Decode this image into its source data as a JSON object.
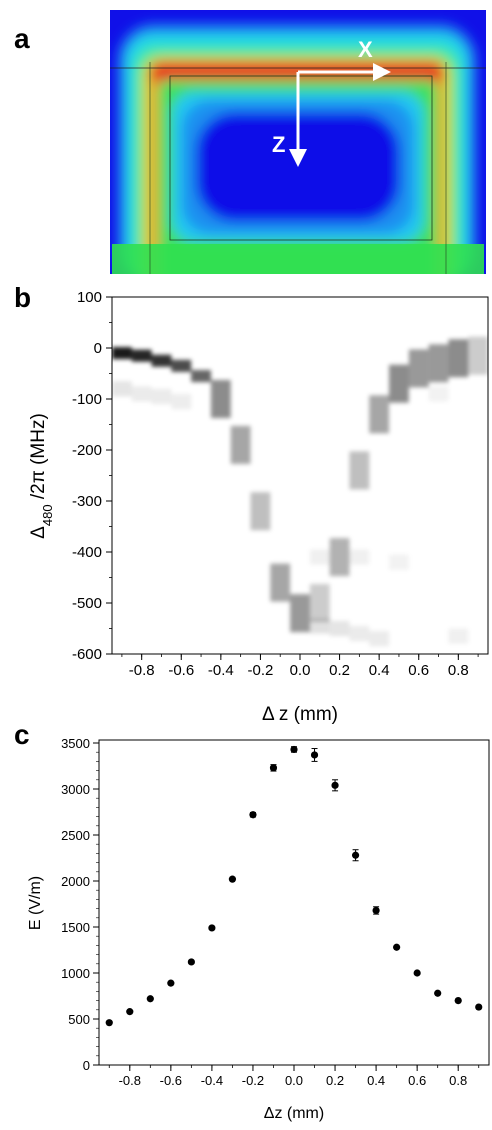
{
  "panels": {
    "a": {
      "label": "a",
      "x_arrow_label": "X",
      "z_arrow_label": "Z"
    },
    "b": {
      "label": "b"
    },
    "c": {
      "label": "c"
    }
  },
  "colors": {
    "field_low": "#1414e6",
    "field_mid": "#22e03c",
    "field_high": "#e83020",
    "spectrum": "#000000",
    "points": "#000000"
  },
  "chart_data": [
    {
      "panel": "b",
      "type": "heatmap",
      "xlabel": "Δ z (mm)",
      "ylabel_parts": [
        "Δ",
        "480",
        " /2π (MHz)"
      ],
      "xlim": [
        -0.95,
        0.95
      ],
      "ylim": [
        -600,
        100
      ],
      "x_ticks": [
        -0.8,
        -0.6,
        -0.4,
        -0.2,
        0.0,
        0.2,
        0.4,
        0.6,
        0.8
      ],
      "x_tick_labels": [
        "-0.8",
        "-0.6",
        "-0.4",
        "-0.2",
        "0.0",
        "0.2",
        "0.4",
        "0.6",
        "0.8"
      ],
      "y_ticks": [
        100,
        0,
        -100,
        -200,
        -300,
        -400,
        -500,
        -600
      ],
      "y_tick_labels": [
        "100",
        "0",
        "-100",
        "-200",
        "-300",
        "-400",
        "-500",
        "-600"
      ],
      "dz_columns": [
        -0.9,
        -0.8,
        -0.7,
        -0.6,
        -0.5,
        -0.4,
        -0.3,
        -0.2,
        -0.1,
        0.0,
        0.1,
        0.2,
        0.3,
        0.4,
        0.5,
        0.6,
        0.7,
        0.8,
        0.9
      ],
      "peaks": [
        {
          "x": -0.9,
          "y": -10,
          "strength": 0.9
        },
        {
          "x": -0.8,
          "y": -15,
          "strength": 0.85
        },
        {
          "x": -0.7,
          "y": -25,
          "strength": 0.8
        },
        {
          "x": -0.6,
          "y": -35,
          "strength": 0.7
        },
        {
          "x": -0.5,
          "y": -55,
          "strength": 0.6
        },
        {
          "x": -0.4,
          "y": -100,
          "strength": 0.45
        },
        {
          "x": -0.3,
          "y": -190,
          "strength": 0.35
        },
        {
          "x": -0.2,
          "y": -320,
          "strength": 0.25
        },
        {
          "x": -0.1,
          "y": -460,
          "strength": 0.35
        },
        {
          "x": 0.0,
          "y": -520,
          "strength": 0.4
        },
        {
          "x": 0.1,
          "y": -500,
          "strength": 0.2
        },
        {
          "x": 0.2,
          "y": -410,
          "strength": 0.3
        },
        {
          "x": 0.3,
          "y": -240,
          "strength": 0.25
        },
        {
          "x": 0.4,
          "y": -130,
          "strength": 0.35
        },
        {
          "x": 0.5,
          "y": -70,
          "strength": 0.45
        },
        {
          "x": 0.6,
          "y": -40,
          "strength": 0.4
        },
        {
          "x": 0.7,
          "y": -30,
          "strength": 0.4
        },
        {
          "x": 0.8,
          "y": -20,
          "strength": 0.45
        },
        {
          "x": 0.9,
          "y": -15,
          "strength": 0.2
        }
      ],
      "secondary_peaks": [
        {
          "x": -0.9,
          "y": -80,
          "strength": 0.1
        },
        {
          "x": -0.8,
          "y": -90,
          "strength": 0.08
        },
        {
          "x": -0.7,
          "y": -95,
          "strength": 0.08
        },
        {
          "x": -0.6,
          "y": -105,
          "strength": 0.07
        },
        {
          "x": 0.1,
          "y": -545,
          "strength": 0.12
        },
        {
          "x": 0.2,
          "y": -550,
          "strength": 0.1
        },
        {
          "x": 0.3,
          "y": -560,
          "strength": 0.08
        },
        {
          "x": 0.4,
          "y": -570,
          "strength": 0.08
        },
        {
          "x": 0.1,
          "y": -410,
          "strength": 0.06
        },
        {
          "x": 0.3,
          "y": -410,
          "strength": 0.06
        },
        {
          "x": 0.5,
          "y": -420,
          "strength": 0.05
        },
        {
          "x": 0.7,
          "y": -90,
          "strength": 0.05
        },
        {
          "x": 0.8,
          "y": -565,
          "strength": 0.06
        }
      ]
    },
    {
      "panel": "c",
      "type": "scatter",
      "xlabel": "Δz (mm)",
      "ylabel": "E (V/m)",
      "xlim": [
        -0.95,
        0.95
      ],
      "ylim": [
        0,
        3500
      ],
      "x_ticks": [
        -0.8,
        -0.6,
        -0.4,
        -0.2,
        0.0,
        0.2,
        0.4,
        0.6,
        0.8
      ],
      "x_tick_labels": [
        "-0.8",
        "-0.6",
        "-0.4",
        "-0.2",
        "0.0",
        "0.2",
        "0.4",
        "0.6",
        "0.8"
      ],
      "y_ticks": [
        0,
        500,
        1000,
        1500,
        2000,
        2500,
        3000,
        3500
      ],
      "y_tick_labels": [
        "0",
        "500",
        "1000",
        "1500",
        "2000",
        "2500",
        "3000",
        "3500"
      ],
      "x": [
        -0.9,
        -0.8,
        -0.7,
        -0.6,
        -0.5,
        -0.4,
        -0.3,
        -0.2,
        -0.1,
        0.0,
        0.1,
        0.2,
        0.3,
        0.4,
        0.5,
        0.6,
        0.7,
        0.8,
        0.9
      ],
      "y": [
        460,
        580,
        720,
        890,
        1120,
        1490,
        2020,
        2720,
        3230,
        3430,
        3370,
        3040,
        2280,
        1680,
        1280,
        1000,
        780,
        700,
        630
      ],
      "err": [
        0,
        0,
        0,
        0,
        0,
        0,
        0,
        25,
        35,
        30,
        70,
        60,
        60,
        40,
        0,
        0,
        0,
        0,
        0
      ]
    }
  ]
}
